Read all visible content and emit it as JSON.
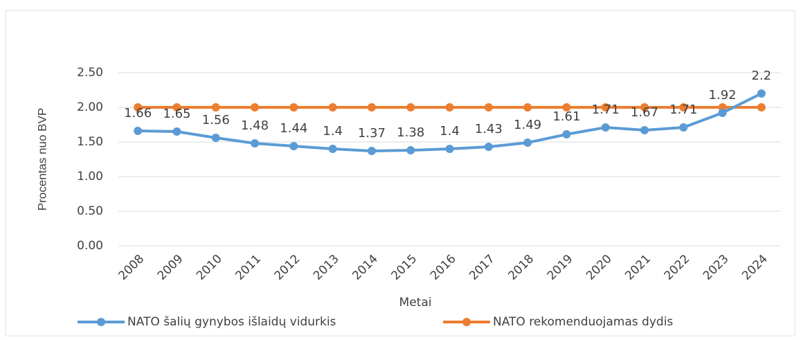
{
  "chart_data": {
    "type": "line",
    "categories": [
      "2008",
      "2009",
      "2010",
      "2011",
      "2012",
      "2013",
      "2014",
      "2015",
      "2016",
      "2017",
      "2018",
      "2019",
      "2020",
      "2021",
      "2022",
      "2023",
      "2024"
    ],
    "series": [
      {
        "name": "NATO šalių gynybos išlaidų vidurkis",
        "color": "#5b9bd5",
        "values": [
          1.66,
          1.65,
          1.56,
          1.48,
          1.44,
          1.4,
          1.37,
          1.38,
          1.4,
          1.43,
          1.49,
          1.61,
          1.71,
          1.67,
          1.71,
          1.92,
          2.2
        ]
      },
      {
        "name": "NATO rekomenduojamas dydis",
        "color": "#ed7d31",
        "values": [
          2,
          2,
          2,
          2,
          2,
          2,
          2,
          2,
          2,
          2,
          2,
          2,
          2,
          2,
          2,
          2,
          2
        ]
      }
    ],
    "data_labels_series": 0,
    "ylim": [
      0,
      2.5
    ],
    "yticks": [
      {
        "value": 0,
        "label": "0.00"
      },
      {
        "value": 0.5,
        "label": "0.50"
      },
      {
        "value": 1,
        "label": "1.00"
      },
      {
        "value": 1.5,
        "label": "1.50"
      },
      {
        "value": 2,
        "label": "2.00"
      },
      {
        "value": 2.5,
        "label": "2.50"
      }
    ],
    "grid": true,
    "xlabel": "Metai",
    "ylabel": "Procentas nuo BVP",
    "legend": "bottom"
  }
}
